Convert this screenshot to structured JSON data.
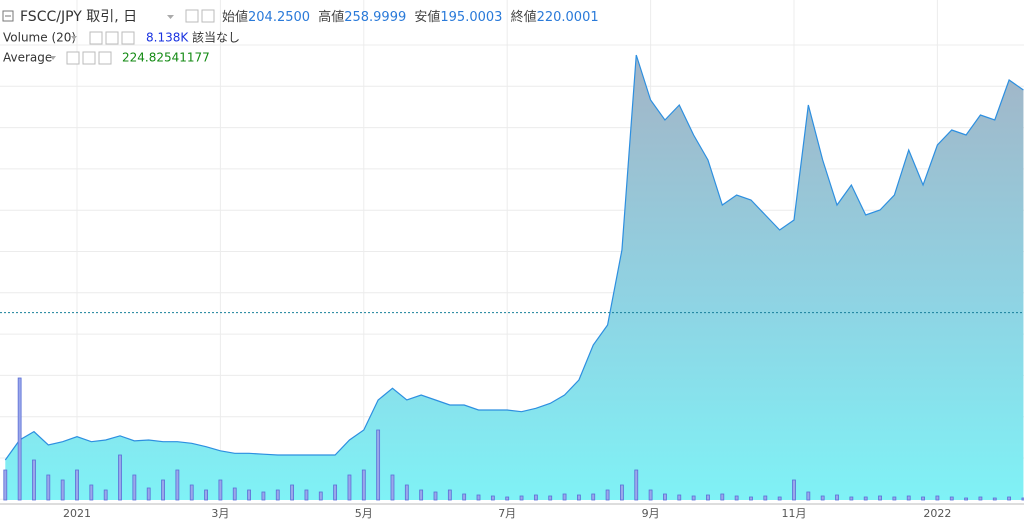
{
  "chart_data": {
    "type": "area",
    "title": "FSCC/JPY 取引, 日",
    "ohlc": [
      {
        "label": "始値",
        "value": "204.2500"
      },
      {
        "label": "高値",
        "value": "258.9999"
      },
      {
        "label": "安値",
        "value": "195.0003"
      },
      {
        "label": "終値",
        "value": "220.0001"
      }
    ],
    "categories": [
      null,
      null,
      null,
      null,
      null,
      "2021",
      null,
      null,
      null,
      null,
      null,
      null,
      null,
      null,
      null,
      "3月",
      null,
      null,
      null,
      null,
      null,
      null,
      null,
      null,
      null,
      "5月",
      null,
      null,
      null,
      null,
      null,
      null,
      null,
      null,
      null,
      "7月",
      null,
      null,
      null,
      null,
      null,
      null,
      null,
      null,
      null,
      "9月",
      null,
      null,
      null,
      null,
      null,
      null,
      null,
      null,
      null,
      "11月",
      null,
      null,
      null,
      null,
      null,
      null,
      null,
      null,
      null,
      "2022",
      null,
      null,
      null,
      null,
      null,
      null
    ],
    "values": [
      48,
      72,
      82,
      66,
      70,
      76,
      70,
      72,
      77,
      71,
      72,
      70,
      70,
      68,
      64,
      59,
      56,
      56,
      55,
      54,
      54,
      54,
      54,
      54,
      72,
      84,
      120,
      134,
      120,
      126,
      120,
      114,
      114,
      108,
      108,
      108,
      106,
      110,
      116,
      126,
      144,
      186,
      210,
      300,
      534,
      480,
      456,
      474,
      438,
      408,
      354,
      366,
      360,
      342,
      324,
      336,
      474,
      408,
      354,
      378,
      342,
      348,
      366,
      420,
      378,
      426,
      444,
      438,
      462,
      456,
      504,
      492
    ],
    "color": "#2d8fe0",
    "ylim": [
      0,
      600
    ],
    "average": {
      "name": "Average",
      "value": 224.82541177,
      "color": "#17809a"
    },
    "volume": {
      "name": "Volume (20)",
      "last": "8.138K",
      "status": "該当なし",
      "color": "#5b6fd6",
      "values": [
        30,
        122,
        40,
        25,
        20,
        30,
        15,
        10,
        45,
        25,
        12,
        20,
        30,
        15,
        10,
        20,
        12,
        10,
        8,
        10,
        15,
        10,
        8,
        15,
        25,
        30,
        70,
        25,
        15,
        10,
        8,
        10,
        6,
        5,
        4,
        3,
        4,
        5,
        4,
        6,
        5,
        6,
        10,
        15,
        30,
        10,
        6,
        5,
        4,
        5,
        6,
        4,
        3,
        4,
        3,
        20,
        8,
        4,
        5,
        3,
        3,
        4,
        3,
        4,
        3,
        4,
        3,
        2,
        3,
        2,
        3,
        2
      ],
      "ylim": [
        0,
        500
      ]
    }
  }
}
